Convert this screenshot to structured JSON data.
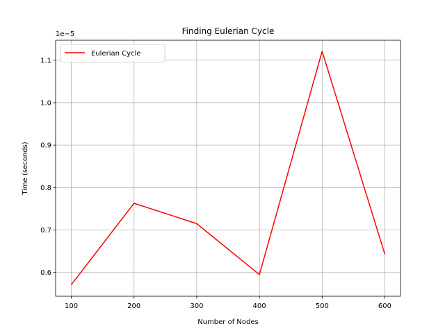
{
  "chart_data": {
    "type": "line",
    "title": "Finding Eulerian Cycle",
    "xlabel": "Number of Nodes",
    "ylabel": "Time (seconds)",
    "y_multiplier": "1e−5",
    "x": [
      100,
      200,
      300,
      400,
      500,
      600
    ],
    "series": [
      {
        "name": "Eulerian Cycle",
        "color": "#ff0000",
        "values": [
          0.571,
          0.763,
          0.715,
          0.595,
          1.121,
          0.643
        ]
      }
    ],
    "xticks": [
      100,
      200,
      300,
      400,
      500,
      600
    ],
    "xtick_labels": [
      "100",
      "200",
      "300",
      "400",
      "500",
      "600"
    ],
    "yticks": [
      0.6,
      0.7,
      0.8,
      0.9,
      1.0,
      1.1
    ],
    "ytick_labels": [
      "0.6",
      "0.7",
      "0.8",
      "0.9",
      "1.0",
      "1.1"
    ],
    "xlim": [
      75,
      625
    ],
    "ylim": [
      0.544,
      1.147
    ],
    "grid": true,
    "legend_loc": "upper left"
  }
}
